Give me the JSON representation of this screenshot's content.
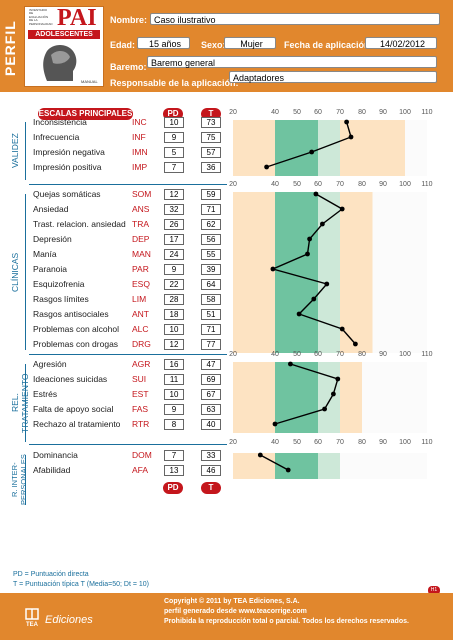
{
  "header": {
    "perfil": "PERFIL",
    "cover": {
      "title_small": "INVENTARIO DE EVALUACIÓN DE LA PERSONALIDAD",
      "brand": "PAI",
      "subtitle": "ADOLESCENTES",
      "manual": "MANUAL"
    },
    "nombre_label": "Nombre:",
    "nombre_value": "Caso ilustrativo",
    "edad_label": "Edad:",
    "edad_value": "15 años",
    "sexo_label": "Sexo:",
    "sexo_value": "Mujer",
    "fecha_label": "Fecha de aplicación:",
    "fecha_value": "14/02/2012",
    "baremo_label": "Baremo:",
    "baremo_value": "Baremo general",
    "responsable_label": "Responsable de la aplicación:",
    "responsable_value": "Adaptadores"
  },
  "legend": {
    "escalas": "ESCALAS PRINCIPALES",
    "pd": "PD",
    "t": "T"
  },
  "sections": [
    {
      "label": "VALIDEZ",
      "rows": [
        {
          "name": "Inconsistencia",
          "abbr": "INC",
          "pd": "10",
          "t": "73"
        },
        {
          "name": "Infrecuencia",
          "abbr": "INF",
          "pd": "9",
          "t": "75"
        },
        {
          "name": "Impresión negativa",
          "abbr": "IMN",
          "pd": "5",
          "t": "57"
        },
        {
          "name": "Impresión positiva",
          "abbr": "IMP",
          "pd": "7",
          "t": "36"
        }
      ]
    },
    {
      "label": "CLÍNICAS",
      "rows": [
        {
          "name": "Quejas somáticas",
          "abbr": "SOM",
          "pd": "12",
          "t": "59"
        },
        {
          "name": "Ansiedad",
          "abbr": "ANS",
          "pd": "32",
          "t": "71"
        },
        {
          "name": "Trast. relacion. ansiedad",
          "abbr": "TRA",
          "pd": "26",
          "t": "62"
        },
        {
          "name": "Depresión",
          "abbr": "DEP",
          "pd": "17",
          "t": "56"
        },
        {
          "name": "Manía",
          "abbr": "MAN",
          "pd": "24",
          "t": "55"
        },
        {
          "name": "Paranoia",
          "abbr": "PAR",
          "pd": "9",
          "t": "39"
        },
        {
          "name": "Esquizofrenia",
          "abbr": "ESQ",
          "pd": "22",
          "t": "64"
        },
        {
          "name": "Rasgos límites",
          "abbr": "LIM",
          "pd": "28",
          "t": "58"
        },
        {
          "name": "Rasgos antisociales",
          "abbr": "ANT",
          "pd": "18",
          "t": "51"
        },
        {
          "name": "Problemas con alcohol",
          "abbr": "ALC",
          "pd": "10",
          "t": "71"
        },
        {
          "name": "Problemas con drogas",
          "abbr": "DRG",
          "pd": "12",
          "t": "77"
        }
      ]
    },
    {
      "label": "REL. TRATAMIENTO",
      "rows": [
        {
          "name": "Agresión",
          "abbr": "AGR",
          "pd": "16",
          "t": "47"
        },
        {
          "name": "Ideaciones suicidas",
          "abbr": "SUI",
          "pd": "11",
          "t": "69"
        },
        {
          "name": "Estrés",
          "abbr": "EST",
          "pd": "10",
          "t": "67"
        },
        {
          "name": "Falta de apoyo social",
          "abbr": "FAS",
          "pd": "9",
          "t": "63"
        },
        {
          "name": "Rechazo al tratamiento",
          "abbr": "RTR",
          "pd": "8",
          "t": "40"
        }
      ]
    },
    {
      "label": "R. INTER-PERSONALES",
      "rows": [
        {
          "name": "Dominancia",
          "abbr": "DOM",
          "pd": "7",
          "t": "33"
        },
        {
          "name": "Afabilidad",
          "abbr": "AFA",
          "pd": "13",
          "t": "46"
        }
      ]
    }
  ],
  "chart_data": {
    "type": "line",
    "x_ticks": [
      20,
      40,
      50,
      60,
      70,
      80,
      90,
      100,
      110
    ],
    "xlim": [
      20,
      110
    ],
    "series": [
      {
        "values": [
          73,
          75,
          57,
          36
        ]
      },
      {
        "values": [
          59,
          71,
          62,
          56,
          55,
          39,
          64,
          58,
          51,
          71,
          77
        ]
      },
      {
        "values": [
          47,
          69,
          67,
          63,
          40
        ]
      },
      {
        "values": [
          33,
          46
        ]
      }
    ],
    "colors": {
      "green": "#6fc3a0",
      "light_green": "#cde8d8",
      "orange": "#f7c07a",
      "light_orange": "#fde3c2",
      "line": "#000000"
    }
  },
  "bottom_legend": {
    "pd_label": "PD",
    "t_label": "T"
  },
  "notes": {
    "line1": "PD = Puntuación directa",
    "line2": "T = Puntuación típica T (Media=50; Dt = 10)"
  },
  "footer": {
    "copyright": "Copyright © 2011 by TEA Ediciones, S.A.",
    "web": "perfil generado desde www.teacorrige.com",
    "rights": "Prohibida la reproducción total o parcial. Todos los derechos reservados.",
    "tea": "TEA",
    "ediciones": "Ediciones",
    "page": "H1"
  }
}
